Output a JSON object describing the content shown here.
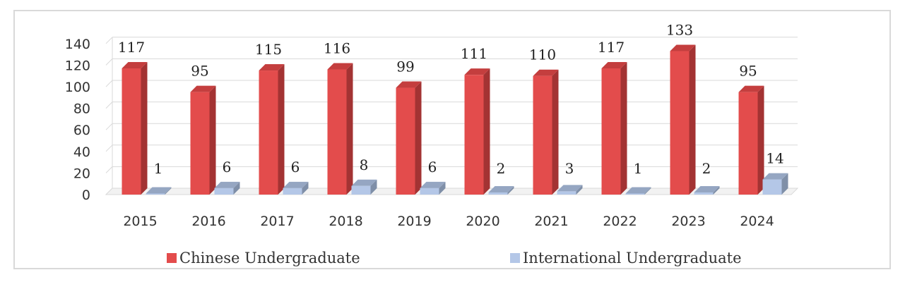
{
  "chart_data": {
    "type": "bar",
    "categories": [
      "2015",
      "2016",
      "2017",
      "2018",
      "2019",
      "2020",
      "2021",
      "2022",
      "2023",
      "2024"
    ],
    "series": [
      {
        "name": "Chinese Undergraduate",
        "values": [
          117,
          95,
          115,
          116,
          99,
          111,
          110,
          117,
          133,
          95
        ],
        "color": "#e34c4c",
        "side_color": "#a33333",
        "top_color": "#c43e3e"
      },
      {
        "name": "International Undergraduate",
        "values": [
          1,
          6,
          6,
          8,
          6,
          2,
          3,
          1,
          2,
          14
        ],
        "color": "#b4c7e7",
        "side_color": "#7f8fa8",
        "top_color": "#95a6c2"
      }
    ],
    "y_ticks": [
      "0",
      "20",
      "40",
      "60",
      "80",
      "100",
      "120",
      "140"
    ],
    "ylim": [
      0,
      140
    ],
    "grid": true,
    "legend_position": "bottom",
    "style": "3d-column"
  }
}
